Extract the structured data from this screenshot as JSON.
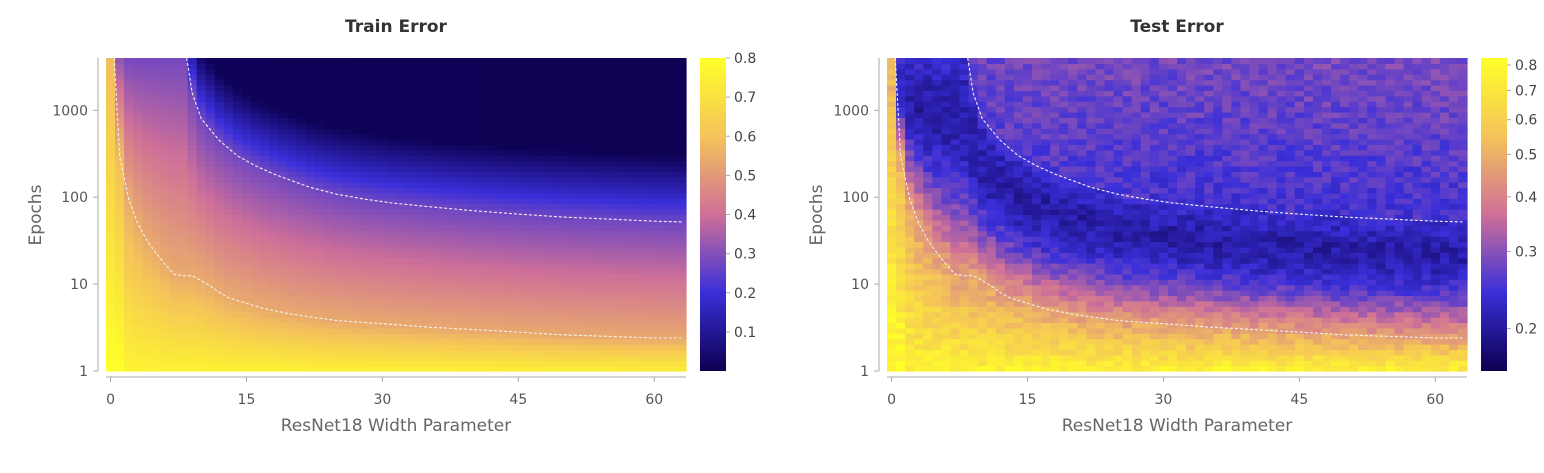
{
  "chart_data": [
    {
      "type": "heatmap",
      "title": "Train Error",
      "xlabel": "ResNet18 Width Parameter",
      "ylabel": "Epochs",
      "xlim": [
        -0.5,
        63.5
      ],
      "ylim": [
        1,
        4000
      ],
      "yscale": "log",
      "xticks": [
        0,
        15,
        30,
        45,
        60
      ],
      "yticks": [
        1,
        10,
        100,
        1000
      ],
      "colorbar": {
        "min": 0.0,
        "max": 0.8,
        "scale": "linear",
        "ticks": [
          0.1,
          0.2,
          0.3,
          0.4,
          0.5,
          0.6,
          0.7,
          0.8
        ]
      },
      "contours": [
        {
          "x": [
            0.4,
            1,
            2,
            3,
            4,
            5,
            6,
            7,
            8,
            9,
            10,
            11,
            12,
            13,
            15,
            17,
            20,
            25,
            30,
            35,
            40,
            45,
            50,
            55,
            60,
            63
          ],
          "y": [
            4000,
            300,
            95,
            50,
            32,
            23,
            17,
            13,
            12.5,
            12.5,
            11,
            9.5,
            8,
            7,
            6,
            5.2,
            4.5,
            3.8,
            3.5,
            3.2,
            3.0,
            2.8,
            2.6,
            2.5,
            2.4,
            2.4
          ]
        },
        {
          "x": [
            8.4,
            9,
            10,
            12,
            14,
            16,
            18,
            20,
            22,
            25,
            28,
            31,
            35,
            40,
            45,
            50,
            55,
            60,
            63
          ],
          "y": [
            4000,
            1600,
            800,
            450,
            300,
            230,
            185,
            155,
            130,
            108,
            95,
            86,
            78,
            70,
            64,
            59,
            56,
            53,
            52
          ]
        }
      ]
    },
    {
      "type": "heatmap",
      "title": "Test Error",
      "xlabel": "ResNet18 Width Parameter",
      "ylabel": "Epochs",
      "xlim": [
        -0.5,
        63.5
      ],
      "ylim": [
        1,
        4000
      ],
      "yscale": "log",
      "xticks": [
        0,
        15,
        30,
        45,
        60
      ],
      "yticks": [
        1,
        10,
        100,
        1000
      ],
      "colorbar": {
        "min": 0.16,
        "max": 0.83,
        "scale": "log",
        "ticks": [
          0.2,
          0.3,
          0.4,
          0.5,
          0.6,
          0.7,
          0.8
        ]
      },
      "contours": [
        {
          "x": [
            0.4,
            1,
            2,
            3,
            4,
            5,
            6,
            7,
            8,
            9,
            10,
            11,
            12,
            13,
            15,
            17,
            20,
            25,
            30,
            35,
            40,
            45,
            50,
            55,
            60,
            63
          ],
          "y": [
            4000,
            300,
            95,
            50,
            32,
            23,
            17,
            13,
            12.5,
            12.5,
            11,
            9.5,
            8,
            7,
            6,
            5.2,
            4.5,
            3.8,
            3.5,
            3.2,
            3.0,
            2.8,
            2.6,
            2.5,
            2.4,
            2.4
          ]
        },
        {
          "x": [
            8.4,
            9,
            10,
            12,
            14,
            16,
            18,
            20,
            22,
            25,
            28,
            31,
            35,
            40,
            45,
            50,
            55,
            60,
            63
          ],
          "y": [
            4000,
            1600,
            800,
            450,
            300,
            230,
            185,
            155,
            130,
            108,
            95,
            86,
            78,
            70,
            64,
            59,
            56,
            53,
            52
          ]
        }
      ]
    }
  ],
  "colormap": [
    "#0c0050",
    "#3a2fd9",
    "#cf7098",
    "#f4c35a",
    "#ffff28"
  ]
}
